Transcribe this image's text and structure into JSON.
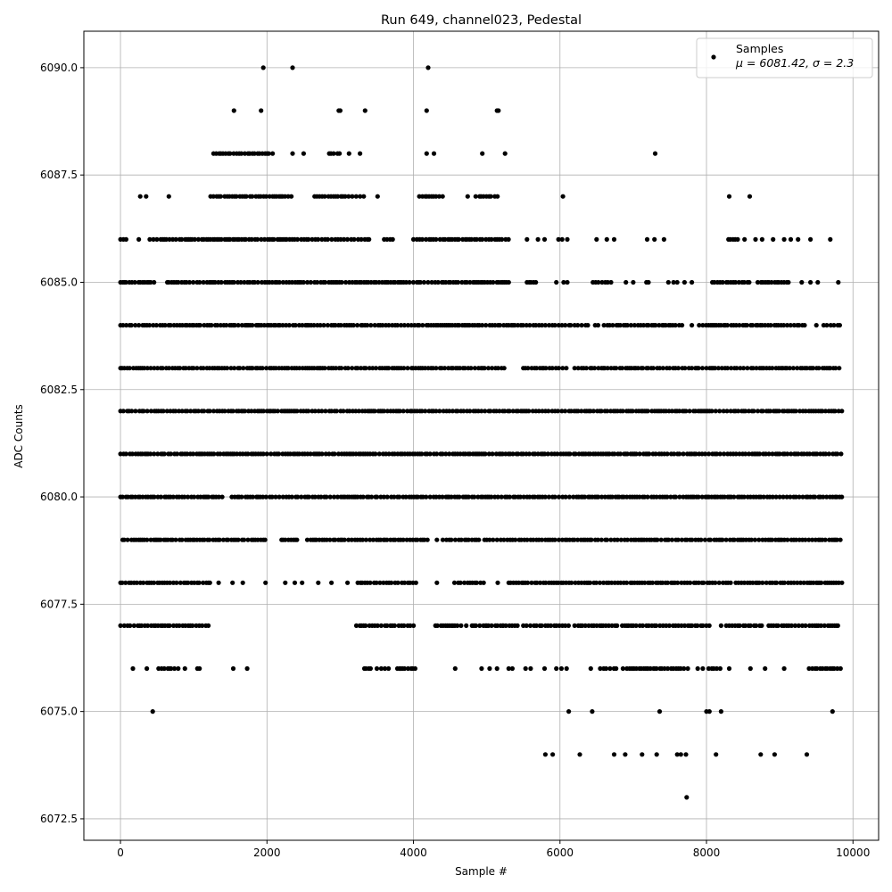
{
  "chart_data": {
    "type": "scatter",
    "title": "Run 649, channel023, Pedestal",
    "xlabel": "Sample #",
    "ylabel": "ADC Counts",
    "xlim": [
      -500,
      10350
    ],
    "ylim": [
      6072.0,
      6090.85
    ],
    "x_ticks": [
      "0",
      "2000",
      "4000",
      "6000",
      "8000",
      "10000"
    ],
    "x_tick_values": [
      0,
      2000,
      4000,
      6000,
      8000,
      10000
    ],
    "y_ticks": [
      "6072.5",
      "6075.0",
      "6077.5",
      "6080.0",
      "6082.5",
      "6085.0",
      "6087.5",
      "6090.0"
    ],
    "y_tick_values": [
      6072.5,
      6075.0,
      6077.5,
      6080.0,
      6082.5,
      6085.0,
      6087.5,
      6090.0
    ],
    "grid": true,
    "legend_position": "top-right",
    "series": [
      {
        "name": "Samples",
        "stats_label": "μ = 6081.42, σ = 2.3",
        "color": "#000000",
        "levels": [
          {
            "y": 6090,
            "ranges": [],
            "points": [
              1950,
              2350,
              4200
            ]
          },
          {
            "y": 6089,
            "ranges": [],
            "points": [
              1550,
              1920,
              2980,
              3000,
              3340,
              4180,
              5140,
              5160
            ]
          },
          {
            "y": 6088,
            "ranges": [
              [
                1270,
                2100
              ],
              [
                2850,
                3000
              ]
            ],
            "points": [
              2350,
              2500,
              3120,
              3270,
              4180,
              4280,
              4940,
              5250,
              7300
            ]
          },
          {
            "y": 6087,
            "ranges": [
              [
                1230,
                2350
              ],
              [
                2650,
                3350
              ],
              [
                4080,
                4400
              ],
              [
                4850,
                5180
              ]
            ],
            "points": [
              270,
              350,
              660,
              3510,
              4740,
              6040,
              8310,
              8590
            ]
          },
          {
            "y": 6086,
            "ranges": [
              [
                0,
                100
              ],
              [
                450,
                3400
              ],
              [
                3600,
                3760
              ],
              [
                4000,
                5300
              ],
              [
                8300,
                8460
              ]
            ],
            "points": [
              250,
              400,
              5550,
              5700,
              5790,
              5980,
              6030,
              6100,
              6500,
              6640,
              6740,
              7190,
              7290,
              7420,
              8520,
              8670,
              8760,
              8910,
              9060,
              9150,
              9250,
              9420,
              9690
            ]
          },
          {
            "y": 6085,
            "ranges": [
              [
                0,
                480
              ],
              [
                640,
                4200
              ],
              [
                4250,
                5300
              ],
              [
                5550,
                5700
              ],
              [
                6450,
                6700
              ],
              [
                7180,
                7250
              ],
              [
                8080,
                8600
              ],
              [
                8700,
                9150
              ]
            ],
            "points": [
              5950,
              6050,
              6100,
              6900,
              7000,
              7480,
              7550,
              7600,
              7700,
              7800,
              9300,
              9420,
              9520,
              9800
            ]
          },
          {
            "y": 6084,
            "ranges": [
              [
                0,
                6150
              ],
              [
                6200,
                6400
              ],
              [
                6600,
                7700
              ],
              [
                7950,
                9350
              ],
              [
                9600,
                9850
              ]
            ],
            "points": [
              6480,
              6520,
              7800,
              7900,
              9500
            ]
          },
          {
            "y": 6083,
            "ranges": [
              [
                0,
                5250
              ],
              [
                5500,
                6100
              ],
              [
                6200,
                7950
              ],
              [
                8000,
                9830
              ]
            ],
            "points": []
          },
          {
            "y": 6082,
            "ranges": [
              [
                0,
                9850
              ]
            ],
            "points": []
          },
          {
            "y": 6081,
            "ranges": [
              [
                0,
                9850
              ]
            ],
            "points": []
          },
          {
            "y": 6080,
            "ranges": [
              [
                0,
                1400
              ],
              [
                1520,
                9850
              ]
            ],
            "points": []
          },
          {
            "y": 6079,
            "ranges": [
              [
                30,
                2000
              ],
              [
                2200,
                2450
              ],
              [
                2550,
                4200
              ],
              [
                4400,
                4900
              ],
              [
                5000,
                9850
              ]
            ],
            "points": [
              4320,
              4970
            ]
          },
          {
            "y": 6078,
            "ranges": [
              [
                0,
                1240
              ],
              [
                3240,
                4050
              ],
              [
                4560,
                5000
              ],
              [
                5300,
                8300
              ],
              [
                8400,
                9850
              ]
            ],
            "points": [
              1340,
              1530,
              1670,
              1980,
              2250,
              2380,
              2480,
              2700,
              2880,
              3100,
              4320,
              5150,
              8330
            ]
          },
          {
            "y": 6077,
            "ranges": [
              [
                0,
                1200
              ],
              [
                3220,
                3760
              ],
              [
                3800,
                4050
              ],
              [
                4300,
                4660
              ],
              [
                4800,
                5000
              ],
              [
                5000,
                5450
              ],
              [
                5500,
                6150
              ],
              [
                6200,
                6800
              ],
              [
                6850,
                8060
              ],
              [
                8350,
                8580
              ],
              [
                8600,
                8800
              ],
              [
                8850,
                9830
              ]
            ],
            "points": [
              4720,
              5220,
              8200,
              8270,
              8310
            ]
          },
          {
            "y": 6076,
            "ranges": [
              [
                520,
                800
              ],
              [
                3330,
                3420
              ],
              [
                3780,
                4040
              ],
              [
                6550,
                6800
              ],
              [
                6860,
                7200
              ],
              [
                7200,
                7750
              ],
              [
                8030,
                8220
              ],
              [
                9400,
                9830
              ]
            ],
            "points": [
              170,
              360,
              880,
              1050,
              1080,
              1540,
              1730,
              3500,
              3560,
              3610,
              3660,
              3820,
              4570,
              4930,
              5040,
              5140,
              5300,
              5350,
              5530,
              5600,
              5790,
              5950,
              6020,
              6090,
              6420,
              7290,
              7880,
              7950,
              8310,
              8600,
              8800,
              9060
            ]
          },
          {
            "y": 6075,
            "ranges": [],
            "points": [
              440,
              6120,
              6440,
              7360,
              8000,
              8040,
              8200,
              9720
            ]
          },
          {
            "y": 6074,
            "ranges": [],
            "points": [
              5800,
              5900,
              6270,
              6740,
              6890,
              7120,
              7320,
              7600,
              7650,
              7720,
              8130,
              8740,
              8930,
              9370
            ]
          },
          {
            "y": 6073,
            "ranges": [],
            "points": [
              7730
            ]
          }
        ]
      }
    ]
  }
}
